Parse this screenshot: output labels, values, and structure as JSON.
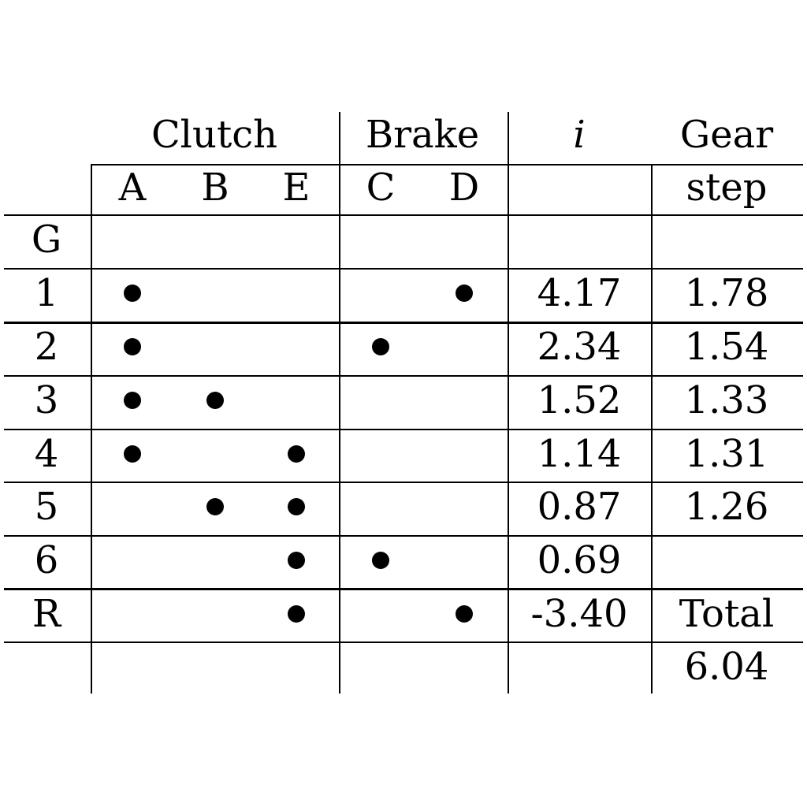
{
  "table": {
    "header": {
      "group_clutch": "Clutch",
      "group_brake": "Brake",
      "ratio_symbol": "i",
      "gear_step_line1": "Gear",
      "gear_step_line2": "step"
    },
    "columns": [
      "A",
      "B",
      "E",
      "C",
      "D"
    ],
    "rows": [
      {
        "gear": "G",
        "engaged": [],
        "ratio": "",
        "step": ""
      },
      {
        "gear": "1",
        "engaged": [
          "A",
          "D"
        ],
        "ratio": "4.17",
        "step": "1.78"
      },
      {
        "gear": "2",
        "engaged": [
          "A",
          "C"
        ],
        "ratio": "2.34",
        "step": "1.54"
      },
      {
        "gear": "3",
        "engaged": [
          "A",
          "B"
        ],
        "ratio": "1.52",
        "step": "1.33"
      },
      {
        "gear": "4",
        "engaged": [
          "A",
          "E"
        ],
        "ratio": "1.14",
        "step": "1.31"
      },
      {
        "gear": "5",
        "engaged": [
          "B",
          "E"
        ],
        "ratio": "0.87",
        "step": "1.26"
      },
      {
        "gear": "6",
        "engaged": [
          "E",
          "C"
        ],
        "ratio": "0.69",
        "step": ""
      },
      {
        "gear": "R",
        "engaged": [
          "E",
          "D"
        ],
        "ratio": "-3.40",
        "step": "Total"
      },
      {
        "gear": "",
        "engaged": [],
        "ratio": "",
        "step": "6.04"
      }
    ]
  }
}
